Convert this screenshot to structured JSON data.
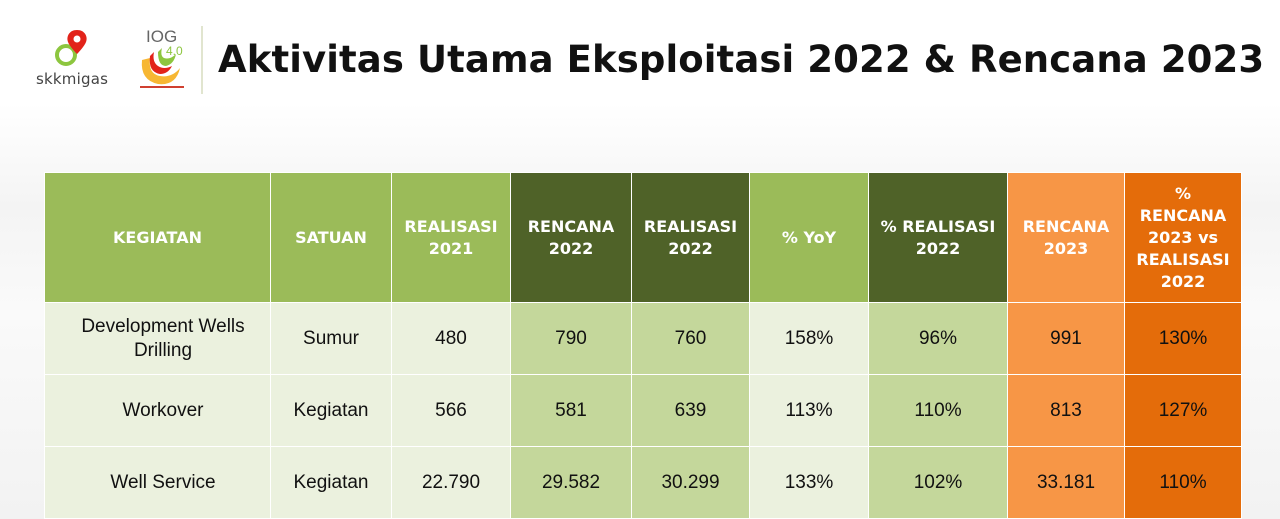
{
  "header": {
    "title": "Aktivitas Utama Eksploitasi 2022 & Rencana 2023",
    "logo_skk_text": "skkmigas",
    "logo_iog_text": "IOG",
    "logo_iog_version": "4.0"
  },
  "table": {
    "columns": [
      "KEGIATAN",
      "SATUAN",
      "REALISASI 2021",
      "RENCANA 2022",
      "REALISASI 2022",
      "% YoY",
      "% REALISASI 2022",
      "RENCANA 2023",
      "% RENCANA 2023 vs REALISASI 2022"
    ],
    "rows": [
      [
        "Development Wells Drilling",
        "Sumur",
        "480",
        "790",
        "760",
        "158%",
        "96%",
        "991",
        "130%"
      ],
      [
        "Workover",
        "Kegiatan",
        "566",
        "581",
        "639",
        "113%",
        "110%",
        "813",
        "127%"
      ],
      [
        "Well Service",
        "Kegiatan",
        "22.790",
        "29.582",
        "30.299",
        "133%",
        "102%",
        "33.181",
        "110%"
      ]
    ]
  },
  "colors": {
    "header_light_green": "#9bbb59",
    "header_dark_green": "#4f6228",
    "header_orange": "#f79646",
    "header_dark_orange": "#e46c0a",
    "cell_light": "#ebf1de",
    "cell_green": "#c4d79b"
  }
}
